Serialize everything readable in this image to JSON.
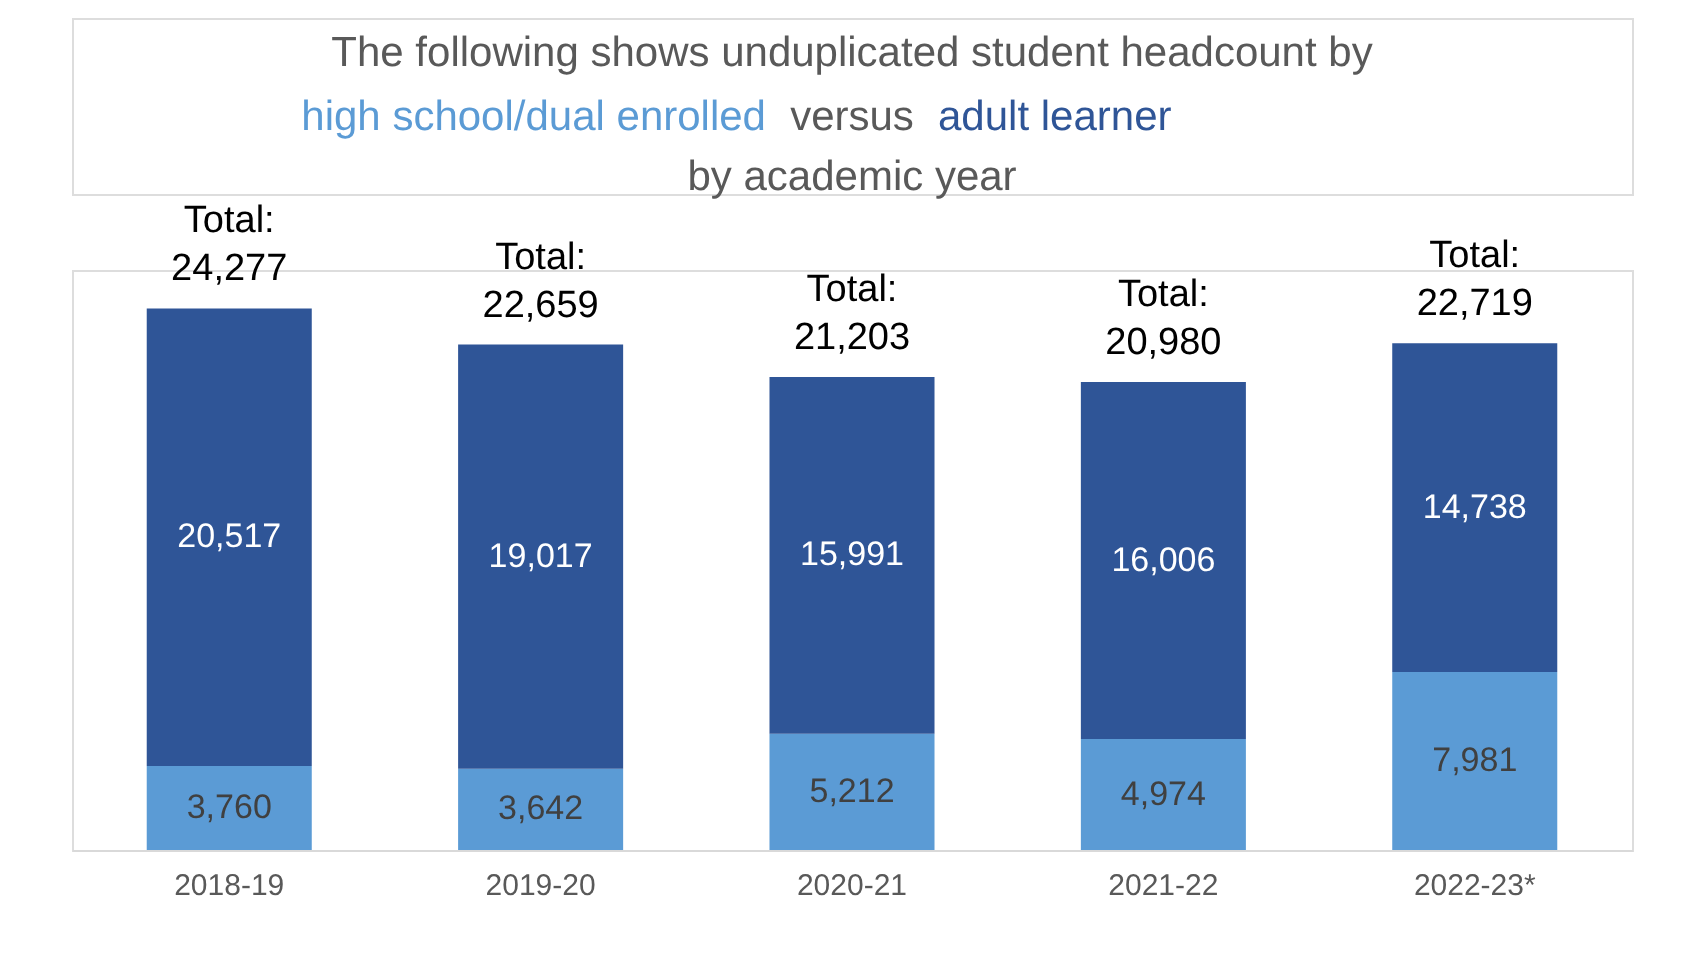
{
  "chart_data": {
    "type": "bar",
    "title": "The following shows unduplicated student headcount by",
    "annotations": [
      "versus",
      "by academic year"
    ],
    "categories": [
      "2018-19",
      "2019-20",
      "2020-21",
      "2021-22",
      "2022-23*"
    ],
    "stacked": true,
    "series": [
      {
        "name": "high school/dual enrolled",
        "color": "#5b9bd5",
        "values": [
          3760,
          3642,
          5212,
          4974,
          7981
        ],
        "value_labels": [
          "3,760",
          "3,642",
          "5,212",
          "4,974",
          "7,981"
        ]
      },
      {
        "name": "adult learner",
        "color": "#2f5597",
        "values": [
          20517,
          19017,
          15991,
          16006,
          14738
        ],
        "value_labels": [
          "20,517",
          "19,017",
          "15,991",
          "16,006",
          "14,738"
        ]
      }
    ],
    "totals": [
      "Total:\n24,277",
      "Total:\n22,659",
      "Total:\n21,203",
      "Total:\n20,980",
      "Total:\n22,719"
    ]
  }
}
